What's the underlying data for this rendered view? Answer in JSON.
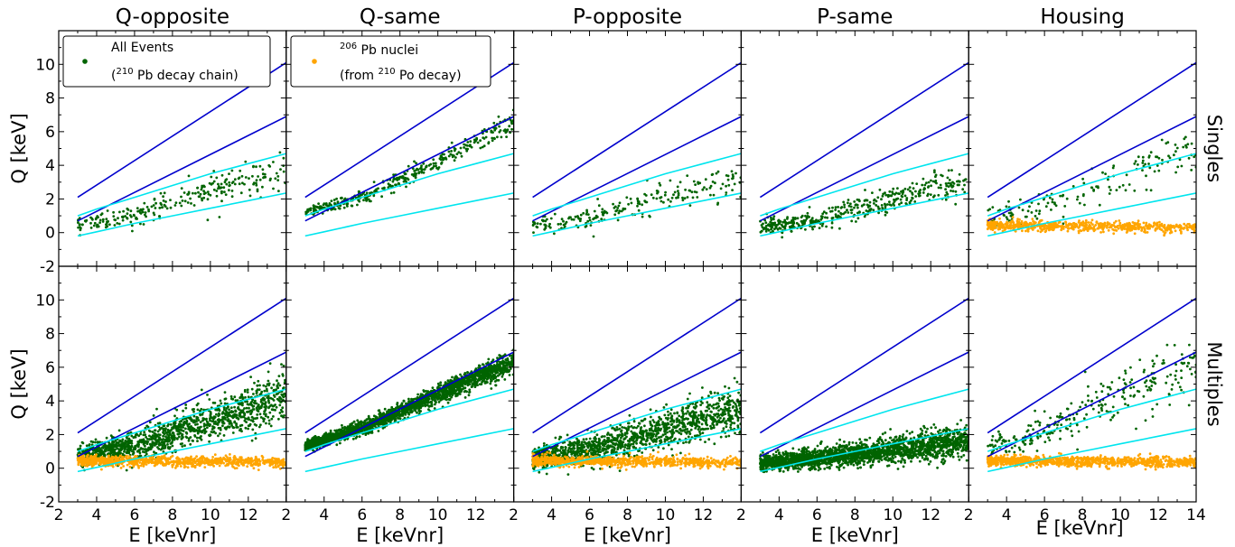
{
  "chart_data": {
    "type": "scatter",
    "columns": [
      "Q-opposite",
      "Q-same",
      "P-opposite",
      "P-same",
      "Housing"
    ],
    "rows": [
      "Singles",
      "Multiples"
    ],
    "xlabel": "E [keVnr]",
    "ylabel": "Q [keV]",
    "xlim": [
      2,
      14
    ],
    "ylim": [
      -2,
      12
    ],
    "x_ticks": [
      "2",
      "4",
      "6",
      "8",
      "10",
      "12",
      "14"
    ],
    "y_ticks": [
      "-2",
      "0",
      "2",
      "4",
      "6",
      "8",
      "10"
    ],
    "grid": false,
    "legend": {
      "all_events": {
        "line1": "All Events",
        "line2_pre": "(",
        "line2_sup": "210",
        "line2_post": " Pb decay chain)"
      },
      "pb_nuclei": {
        "line1_sup": "206",
        "line1_post": " Pb nuclei",
        "line2_pre": "(from ",
        "line2_sup": "210",
        "line2_post": " Po decay)"
      }
    },
    "colors": {
      "all_events": "#006400",
      "pb_nuclei": "#ffa500",
      "band_dark": "#0000cd",
      "band_light": "#00e5ee"
    },
    "reference_lines": [
      {
        "name": "dark-upper",
        "color": "dark",
        "x": [
          3,
          14
        ],
        "y": [
          2.1,
          10.1
        ]
      },
      {
        "name": "dark-lower",
        "color": "dark",
        "x": [
          3,
          14
        ],
        "y": [
          0.7,
          6.9
        ]
      },
      {
        "name": "light-upper",
        "color": "light",
        "x": [
          3,
          4,
          6,
          8,
          10,
          12,
          14
        ],
        "y": [
          1.0,
          1.4,
          2.1,
          2.8,
          3.5,
          4.1,
          4.7
        ]
      },
      {
        "name": "light-lower",
        "color": "light",
        "x": [
          3,
          4,
          6,
          8,
          10,
          12,
          14
        ],
        "y": [
          -0.2,
          0.05,
          0.55,
          1.0,
          1.45,
          1.9,
          2.35
        ]
      }
    ],
    "panels": [
      {
        "row": "Singles",
        "column": "Q-opposite",
        "all_events": {
          "count": 260,
          "band": [
            [
              3,
              0.5
            ],
            [
              6,
              1.1
            ],
            [
              10,
              2.6
            ],
            [
              14,
              3.6
            ]
          ],
          "spread": 0.9
        },
        "pb_nuclei": null
      },
      {
        "row": "Singles",
        "column": "Q-same",
        "all_events": {
          "count": 380,
          "band": [
            [
              3,
              1.2
            ],
            [
              6,
              2.1
            ],
            [
              10,
              4.2
            ],
            [
              14,
              6.6
            ]
          ],
          "spread": 0.55
        },
        "pb_nuclei": null
      },
      {
        "row": "Singles",
        "column": "P-opposite",
        "all_events": {
          "count": 220,
          "band": [
            [
              3,
              0.4
            ],
            [
              6,
              0.9
            ],
            [
              10,
              2.2
            ],
            [
              14,
              3.2
            ]
          ],
          "spread": 0.85
        },
        "pb_nuclei": null
      },
      {
        "row": "Singles",
        "column": "P-same",
        "all_events": {
          "count": 420,
          "band": [
            [
              3,
              0.3
            ],
            [
              6,
              0.7
            ],
            [
              10,
              2.0
            ],
            [
              14,
              3.1
            ]
          ],
          "spread": 0.8
        },
        "pb_nuclei": null
      },
      {
        "row": "Singles",
        "column": "Housing",
        "all_events": {
          "count": 160,
          "band": [
            [
              3,
              0.9
            ],
            [
              6,
              1.6
            ],
            [
              10,
              3.2
            ],
            [
              14,
              5.2
            ]
          ],
          "spread": 1.2
        },
        "pb_nuclei": {
          "count": 650,
          "band": [
            [
              3,
              0.45
            ],
            [
              14,
              0.3
            ]
          ],
          "spread": 0.15
        }
      },
      {
        "row": "Multiples",
        "column": "Q-opposite",
        "all_events": {
          "count": 1300,
          "band": [
            [
              3,
              0.7
            ],
            [
              6,
              1.3
            ],
            [
              10,
              2.8
            ],
            [
              14,
              4.3
            ]
          ],
          "spread": 1.2
        },
        "pb_nuclei": {
          "count": 900,
          "band": [
            [
              3,
              0.45
            ],
            [
              14,
              0.35
            ]
          ],
          "spread": 0.15
        }
      },
      {
        "row": "Multiples",
        "column": "Q-same",
        "all_events": {
          "count": 2200,
          "band": [
            [
              3,
              1.3
            ],
            [
              6,
              2.4
            ],
            [
              10,
              4.4
            ],
            [
              14,
              6.3
            ]
          ],
          "spread": 0.55
        },
        "pb_nuclei": null
      },
      {
        "row": "Multiples",
        "column": "P-opposite",
        "all_events": {
          "count": 1300,
          "band": [
            [
              3,
              0.6
            ],
            [
              6,
              1.1
            ],
            [
              10,
              2.3
            ],
            [
              14,
              3.5
            ]
          ],
          "spread": 1.2
        },
        "pb_nuclei": {
          "count": 900,
          "band": [
            [
              3,
              0.45
            ],
            [
              14,
              0.35
            ]
          ],
          "spread": 0.15
        }
      },
      {
        "row": "Multiples",
        "column": "P-same",
        "all_events": {
          "count": 2200,
          "band": [
            [
              3,
              0.3
            ],
            [
              6,
              0.6
            ],
            [
              10,
              1.1
            ],
            [
              14,
              1.6
            ]
          ],
          "spread": 0.8
        },
        "pb_nuclei": null
      },
      {
        "row": "Multiples",
        "column": "Housing",
        "all_events": {
          "count": 280,
          "band": [
            [
              3,
              1.2
            ],
            [
              6,
              2.2
            ],
            [
              10,
              4.2
            ],
            [
              14,
              6.2
            ]
          ],
          "spread": 1.5
        },
        "pb_nuclei": {
          "count": 1000,
          "band": [
            [
              3,
              0.45
            ],
            [
              14,
              0.35
            ]
          ],
          "spread": 0.15
        }
      }
    ]
  }
}
